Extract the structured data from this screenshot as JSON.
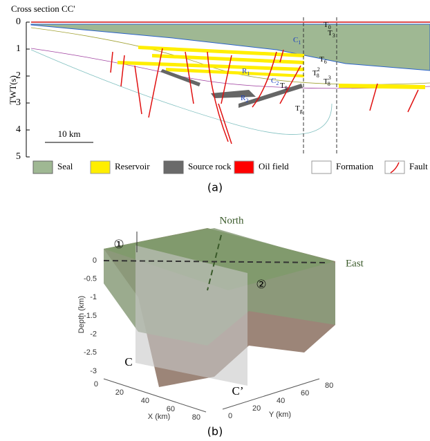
{
  "panel_a": {
    "title": "Cross section CC'",
    "y_axis_label": "TWT(s)",
    "y_ticks": [
      0,
      1,
      2,
      3,
      4,
      5
    ],
    "scale_bar": "10 km",
    "labels": [
      {
        "text": "C",
        "sub": "1"
      },
      {
        "text": "T",
        "sub": "0"
      },
      {
        "text": "T",
        "sub": "3"
      },
      {
        "text": "T",
        "sub": "6"
      },
      {
        "text": "R",
        "sub": "1"
      },
      {
        "text": "C",
        "sub": "2"
      },
      {
        "text": "T",
        "sub": "9"
      },
      {
        "text": "R",
        "sub": "2"
      },
      {
        "text": "T",
        "sub": "8",
        "sup": "2"
      },
      {
        "text": "T",
        "sub": "8",
        "sup": "3"
      },
      {
        "text": "T",
        "sub": "g"
      }
    ],
    "legend": [
      "Seal",
      "Reservoir",
      "Source rock",
      "Oil field",
      "Formation",
      "Fault"
    ],
    "caption": "(a)"
  },
  "panel_b": {
    "north": "North",
    "east": "East",
    "markers": [
      "①",
      "②"
    ],
    "z_axis_label": "Depth (km)",
    "z_ticks": [
      0,
      -0.5,
      -1,
      -1.5,
      -2,
      -2.5,
      -3
    ],
    "x_axis_label": "X (km)",
    "x_ticks": [
      0,
      20,
      40,
      60,
      80
    ],
    "y_axis_label": "Y (km)",
    "y_ticks": [
      0,
      20,
      40,
      60,
      80
    ],
    "section_labels": [
      "C",
      "C’"
    ],
    "caption": "(b)"
  }
}
